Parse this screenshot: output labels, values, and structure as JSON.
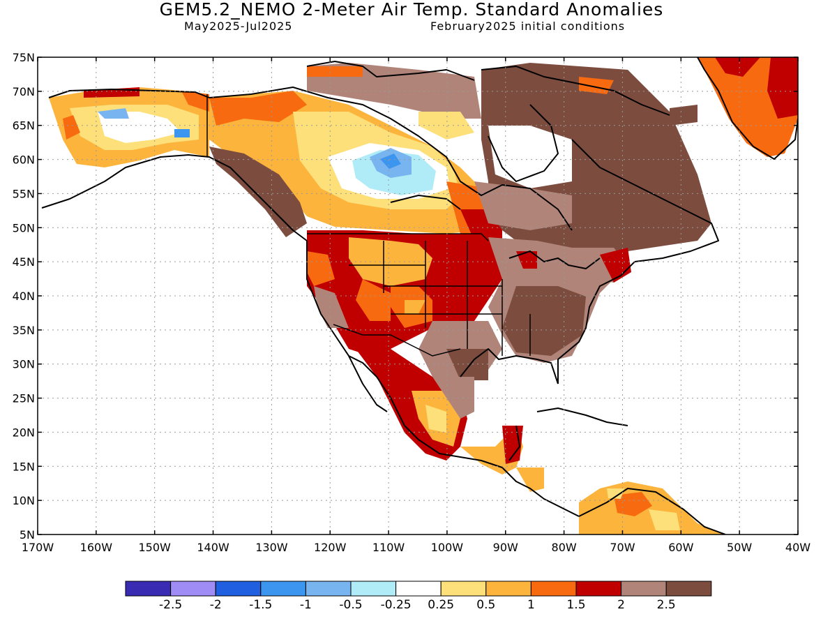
{
  "header": {
    "title": "GEM5.2_NEMO 2-Meter Air Temp. Standard Anomalies",
    "period": "May2025-Jul2025",
    "init": "February2025 initial conditions"
  },
  "map": {
    "lat_labels": [
      "75N",
      "70N",
      "65N",
      "60N",
      "55N",
      "50N",
      "45N",
      "40N",
      "35N",
      "30N",
      "25N",
      "20N",
      "15N",
      "10N",
      "5N"
    ],
    "lon_labels": [
      "170W",
      "160W",
      "150W",
      "140W",
      "130W",
      "120W",
      "110W",
      "100W",
      "90W",
      "80W",
      "70W",
      "60W",
      "50W",
      "40W"
    ],
    "grid": "dotted",
    "extent": {
      "lon": [
        -170,
        -40
      ],
      "lat": [
        5,
        75
      ]
    }
  },
  "colorbar": {
    "colors": [
      "#3a2bb3",
      "#a08cf5",
      "#2060e0",
      "#3c96f0",
      "#78b4f0",
      "#b0ecf8",
      "#ffffff",
      "#fde07a",
      "#fcb43c",
      "#f86a10",
      "#c00000",
      "#b08478",
      "#7c4c3f"
    ],
    "labels": [
      "-2.5",
      "-2",
      "-1.5",
      "-1",
      "-0.5",
      "-0.25",
      "0.25",
      "0.5",
      "1",
      "1.5",
      "2",
      "2.5"
    ]
  }
}
